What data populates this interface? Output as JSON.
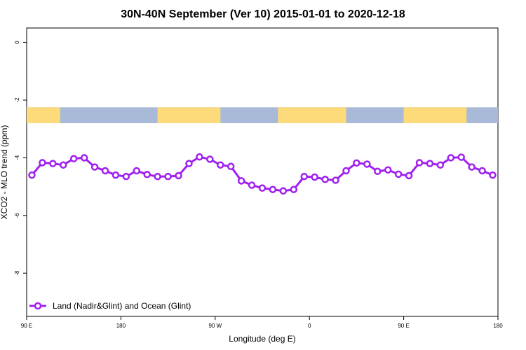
{
  "chart_data": {
    "type": "line",
    "title": "30N-40N September (Ver 10)   2015-01-01 to 2020-12-18",
    "xlabel": "Longitude (deg E)",
    "ylabel": "XCO2 - MLO trend (ppm)",
    "xlim": [
      90,
      540
    ],
    "ylim": [
      -9.5,
      0.5
    ],
    "x_ticks": [
      {
        "value": 90,
        "label": "90 E"
      },
      {
        "value": 180,
        "label": "180"
      },
      {
        "value": 270,
        "label": "90 W"
      },
      {
        "value": 360,
        "label": "0"
      },
      {
        "value": 450,
        "label": "90 E"
      },
      {
        "value": 540,
        "label": "180"
      }
    ],
    "y_ticks": [
      {
        "value": 0,
        "label": "0"
      },
      {
        "value": -2,
        "label": "-2"
      },
      {
        "value": -4,
        "label": "-4"
      },
      {
        "value": -6,
        "label": "-6"
      },
      {
        "value": -8,
        "label": "-8"
      }
    ],
    "grid": false,
    "legend_position": "bottom-left",
    "land_ocean_band": {
      "y_range": [
        -2.8,
        -2.25
      ],
      "ocean_color": "#a8bad8",
      "land_color": "#fddb7b",
      "land_segments": [
        [
          90,
          122
        ],
        [
          215,
          275
        ],
        [
          330,
          395
        ],
        [
          450,
          510
        ]
      ]
    },
    "series": [
      {
        "name": "Land (Nadir&Glint) and Ocean (Glint)",
        "color": "#a020f0",
        "x": [
          95,
          105,
          115,
          125,
          135,
          145,
          155,
          165,
          175,
          185,
          195,
          205,
          215,
          225,
          235,
          245,
          255,
          265,
          275,
          285,
          295,
          305,
          315,
          325,
          335,
          345,
          355,
          365,
          375,
          385,
          395,
          405,
          415,
          425,
          435,
          445,
          455,
          465,
          475,
          485,
          495,
          505,
          515,
          525,
          535
        ],
        "y": [
          -4.6,
          -4.17,
          -4.2,
          -4.25,
          -4.03,
          -4.0,
          -4.32,
          -4.45,
          -4.6,
          -4.65,
          -4.45,
          -4.58,
          -4.65,
          -4.65,
          -4.62,
          -4.2,
          -3.97,
          -4.05,
          -4.25,
          -4.3,
          -4.8,
          -4.95,
          -5.05,
          -5.1,
          -5.15,
          -5.1,
          -4.65,
          -4.67,
          -4.75,
          -4.78,
          -4.45,
          -4.18,
          -4.22,
          -4.47,
          -4.42,
          -4.57,
          -4.62,
          -4.17,
          -4.2,
          -4.25,
          -4.0,
          -3.98,
          -4.32,
          -4.45,
          -4.6
        ]
      }
    ]
  }
}
